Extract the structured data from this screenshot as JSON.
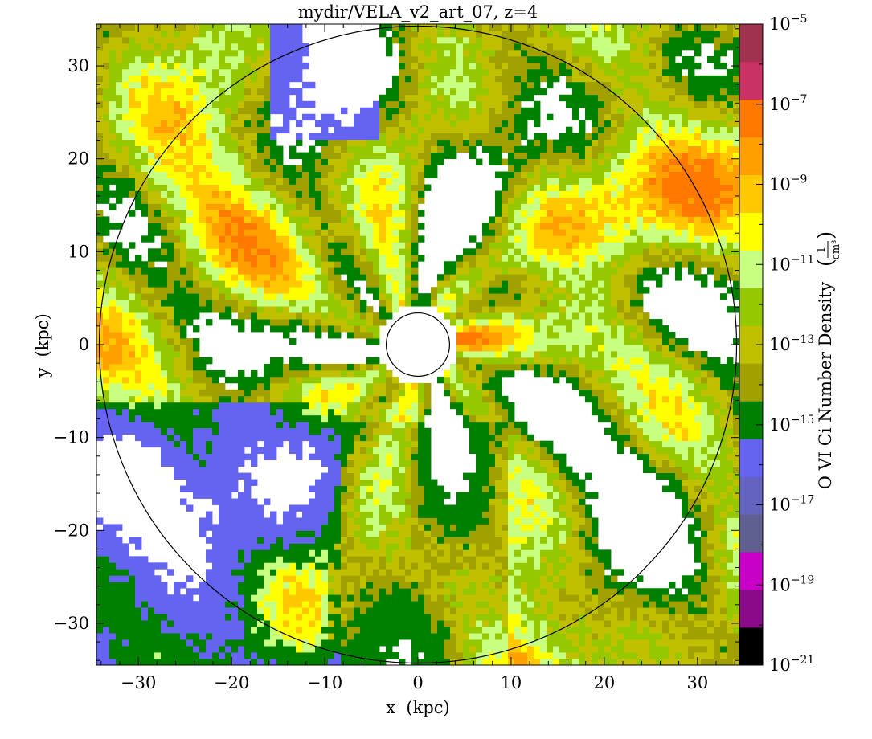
{
  "chart_data": {
    "type": "heatmap",
    "title": "mydir/VELA_v2_art_07, z=4",
    "xlabel": "x  (kpc)",
    "ylabel": "y  (kpc)",
    "xlim": [
      -34.5,
      34.5
    ],
    "ylim": [
      -34.5,
      34.5
    ],
    "xticks": [
      -30,
      -20,
      -10,
      0,
      10,
      20,
      30
    ],
    "yticks": [
      -30,
      -20,
      -10,
      0,
      10,
      20,
      30
    ],
    "xtick_labels": [
      "−30",
      "−20",
      "−10",
      "0",
      "10",
      "20",
      "30"
    ],
    "ytick_labels": [
      "−30",
      "−20",
      "−10",
      "0",
      "10",
      "20",
      "30"
    ],
    "colorbar": {
      "label": "O VI Ci Number Density",
      "unit_numerator": "1",
      "unit_denominator": "cm³",
      "scale": "log",
      "range": [
        1e-21,
        1e-05
      ],
      "ticks": [
        {
          "exp": -5,
          "label": "10"
        },
        {
          "exp": -7,
          "label": "10"
        },
        {
          "exp": -9,
          "label": "10"
        },
        {
          "exp": -11,
          "label": "10"
        },
        {
          "exp": -13,
          "label": "10"
        },
        {
          "exp": -15,
          "label": "10"
        },
        {
          "exp": -17,
          "label": "10"
        },
        {
          "exp": -19,
          "label": "10"
        },
        {
          "exp": -21,
          "label": "10"
        }
      ],
      "colors_bottom_to_top": [
        "#000000",
        "#8a0a8a",
        "#c800c8",
        "#606090",
        "#6464c0",
        "#6464f0",
        "#008000",
        "#a0a000",
        "#c0c000",
        "#96c800",
        "#c8ff80",
        "#ffff00",
        "#ffc800",
        "#ffa000",
        "#ff7800",
        "#c83264",
        "#a03250"
      ]
    },
    "circles": [
      {
        "label": "outer",
        "radius_kpc": 34.2
      },
      {
        "label": "inner",
        "radius_kpc": 3.4
      }
    ]
  }
}
